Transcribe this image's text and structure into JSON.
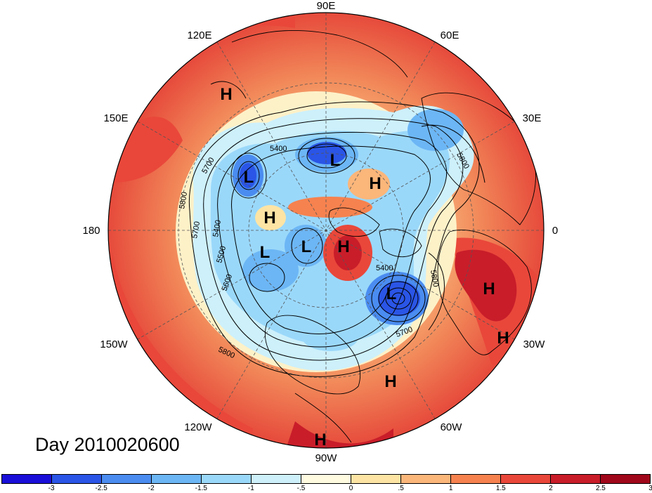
{
  "title": "Day 2010020600",
  "longitude_labels": {
    "top": "90E",
    "upper_left": "120E",
    "upper_right": "60E",
    "left_upper": "150E",
    "right_upper": "30E",
    "left": "180",
    "right": "0",
    "left_lower": "150W",
    "right_lower": "30W",
    "lower_left": "120W",
    "lower_right": "60W",
    "bottom": "90W"
  },
  "pressure_centers": [
    {
      "type": "H",
      "label": "H"
    },
    {
      "type": "H",
      "label": "H"
    },
    {
      "type": "H",
      "label": "H"
    },
    {
      "type": "H",
      "label": "H"
    },
    {
      "type": "H",
      "label": "H"
    },
    {
      "type": "H",
      "label": "H"
    },
    {
      "type": "H",
      "label": "H"
    },
    {
      "type": "H",
      "label": "H"
    },
    {
      "type": "L",
      "label": "L"
    },
    {
      "type": "L",
      "label": "L"
    },
    {
      "type": "L",
      "label": "L"
    },
    {
      "type": "L",
      "label": "L"
    },
    {
      "type": "L",
      "label": "L"
    }
  ],
  "contour_labels": [
    "5400",
    "5700",
    "5800",
    "5800",
    "5700",
    "5400",
    "5500",
    "5600",
    "5400",
    "5800",
    "5700",
    "5800"
  ],
  "colorbar": {
    "colors": [
      "#1a0fd8",
      "#2a55e6",
      "#4a8cf0",
      "#6cb6f5",
      "#9ad8fa",
      "#cdf0fb",
      "#fffbe0",
      "#fde4a4",
      "#fbb67a",
      "#f6824f",
      "#e9473a",
      "#c91d2a",
      "#a0071a"
    ],
    "tick_labels": [
      "-3",
      "-2.5",
      "-2",
      "-1.5",
      "-1",
      "-.5",
      "0",
      ".5",
      "1",
      "1.5",
      "2",
      "2.5",
      "3"
    ]
  }
}
